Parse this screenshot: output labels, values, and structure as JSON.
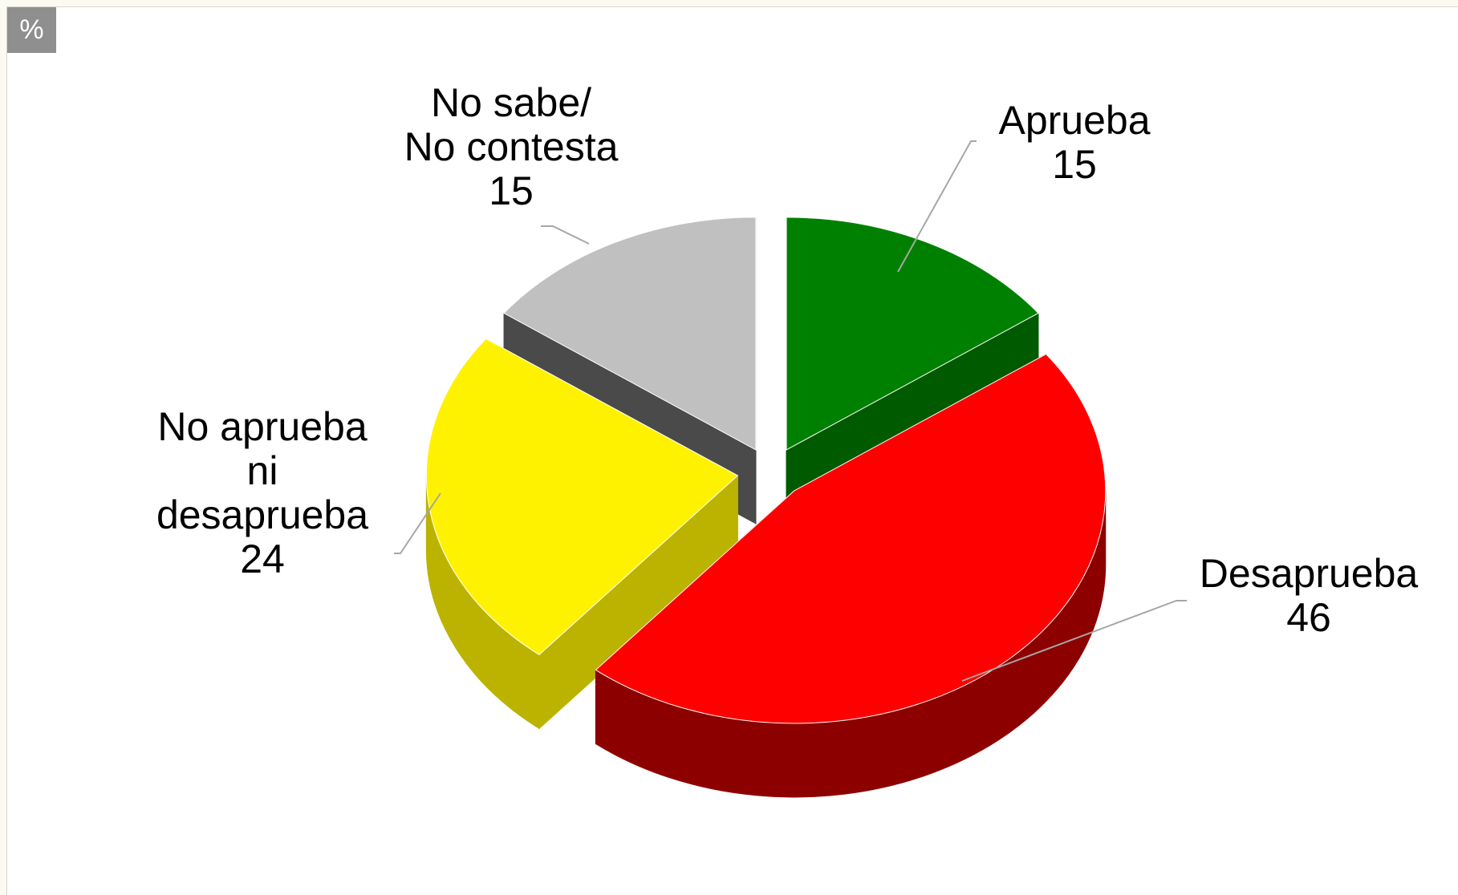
{
  "unit_label": "%",
  "chart_data": {
    "type": "pie",
    "style": "3d-exploded",
    "unit": "%",
    "slices": [
      {
        "label": "Aprueba",
        "value": 15,
        "color": "#008000",
        "dark": "#005a00"
      },
      {
        "label": "Desaprueba",
        "value": 46,
        "color": "#ff0000",
        "dark": "#8c0000"
      },
      {
        "label": "No aprueba ni desaprueba",
        "value": 24,
        "color": "#fff200",
        "dark": "#bcb300"
      },
      {
        "label": "No sabe/ No contesta",
        "value": 15,
        "color": "#c0c0c0",
        "dark": "#4a4a4a"
      }
    ],
    "label_lines": [
      [
        "Aprueba",
        "15"
      ],
      [
        "Desaprueba",
        "46"
      ],
      [
        "No aprueba",
        "ni",
        "desaprueba",
        "24"
      ],
      [
        "No sabe/",
        "No contesta",
        "15"
      ]
    ],
    "leader_line_color": "#a6a6a6",
    "legend": "none"
  }
}
